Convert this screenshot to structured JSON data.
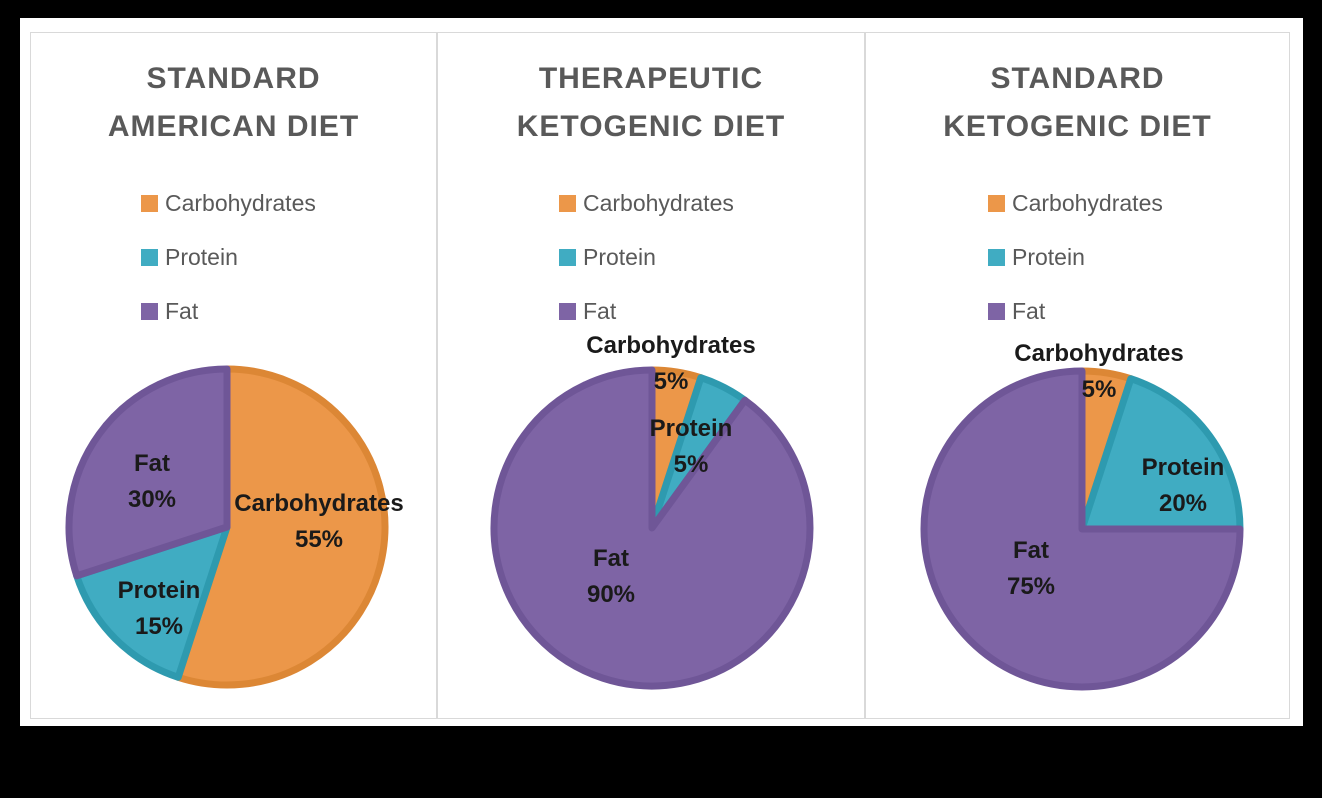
{
  "colors": {
    "page_background": "#000000",
    "canvas_background": "#ffffff",
    "panel_border": "#d9d9d9",
    "title_text": "#595959",
    "legend_text": "#595959",
    "slice_label_text": "#1a1a1a",
    "carbohydrates": "#EC9749",
    "carbohydrates_border": "#DC8735",
    "protein": "#40ACC2",
    "protein_border": "#2E9AAF",
    "fat": "#7E64A5",
    "fat_border": "#6F5697"
  },
  "chart_data": [
    {
      "type": "pie",
      "title": "STANDARD AMERICAN DIET",
      "title_lines": [
        "STANDARD",
        "AMERICAN DIET"
      ],
      "legend_position": "upper-left-column",
      "legend_entries": [
        "Carbohydrates",
        "Protein",
        "Fat"
      ],
      "start_angle_deg": 0,
      "direction": "clockwise",
      "slices": [
        {
          "label": "Carbohydrates",
          "value": 55,
          "pct_label": "55%",
          "color": "#EC9749",
          "border_color": "#DC8735"
        },
        {
          "label": "Protein",
          "value": 15,
          "pct_label": "15%",
          "color": "#40ACC2",
          "border_color": "#2E9AAF"
        },
        {
          "label": "Fat",
          "value": 30,
          "pct_label": "30%",
          "color": "#7E64A5",
          "border_color": "#6F5697"
        }
      ]
    },
    {
      "type": "pie",
      "title": "THERAPEUTIC KETOGENIC DIET",
      "title_lines": [
        "THERAPEUTIC",
        "KETOGENIC DIET"
      ],
      "legend_position": "upper-left-column",
      "legend_entries": [
        "Carbohydrates",
        "Protein",
        "Fat"
      ],
      "start_angle_deg": 0,
      "direction": "clockwise",
      "slices": [
        {
          "label": "Carbohydrates",
          "value": 5,
          "pct_label": "5%",
          "color": "#EC9749",
          "border_color": "#DC8735"
        },
        {
          "label": "Protein",
          "value": 5,
          "pct_label": "5%",
          "color": "#40ACC2",
          "border_color": "#2E9AAF"
        },
        {
          "label": "Fat",
          "value": 90,
          "pct_label": "90%",
          "color": "#7E64A5",
          "border_color": "#6F5697"
        }
      ]
    },
    {
      "type": "pie",
      "title": "STANDARD KETOGENIC DIET",
      "title_lines": [
        "STANDARD",
        "KETOGENIC DIET"
      ],
      "legend_position": "upper-left-column",
      "legend_entries": [
        "Carbohydrates",
        "Protein",
        "Fat"
      ],
      "start_angle_deg": 0,
      "direction": "clockwise",
      "slices": [
        {
          "label": "Carbohydrates",
          "value": 5,
          "pct_label": "5%",
          "color": "#EC9749",
          "border_color": "#DC8735"
        },
        {
          "label": "Protein",
          "value": 20,
          "pct_label": "20%",
          "color": "#40ACC2",
          "border_color": "#2E9AAF"
        },
        {
          "label": "Fat",
          "value": 75,
          "pct_label": "75%",
          "color": "#7E64A5",
          "border_color": "#6F5697"
        }
      ]
    }
  ]
}
